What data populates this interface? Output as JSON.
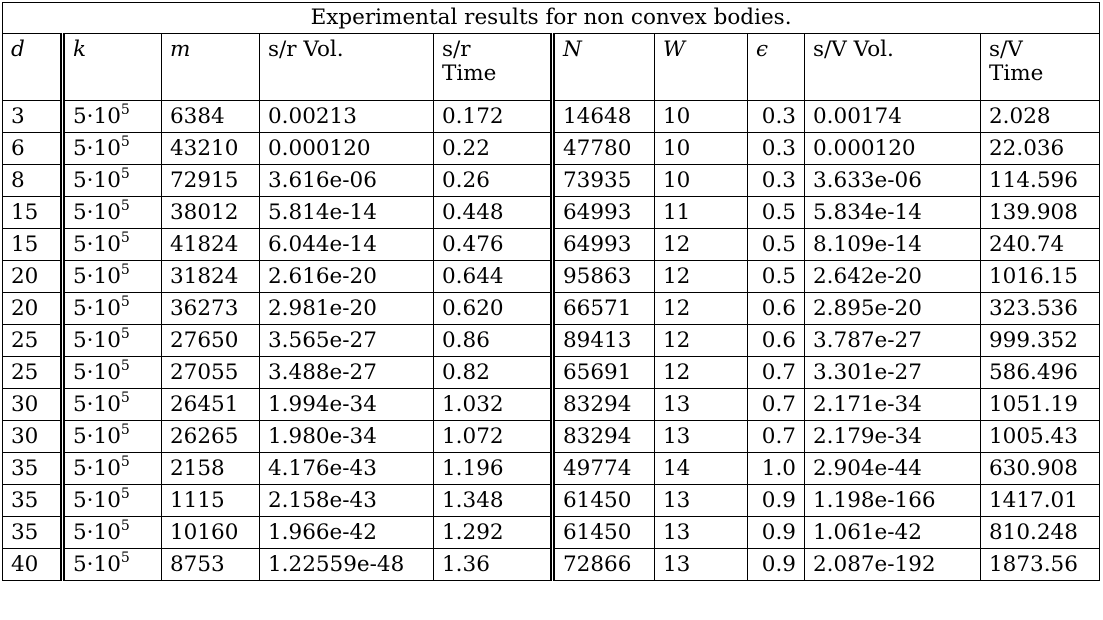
{
  "table": {
    "title": "Experimental results for non convex bodies.",
    "headers": {
      "d": "d",
      "k": "k",
      "m": "m",
      "sr_vol": "s/r Vol.",
      "sr_time_1": "s/r",
      "sr_time_2": "Time",
      "N": "N",
      "W": "W",
      "eps": "ϵ",
      "sv_vol": "s/V Vol.",
      "sv_time_1": "s/V",
      "sv_time_2": "Time"
    },
    "rows": [
      {
        "d": "3",
        "k_base": "5·10",
        "k_exp": "5",
        "m": "6384",
        "sr_vol": "0.00213",
        "sr_time": "0.172",
        "N": "14648",
        "W": "10",
        "eps": "0.3",
        "sv_vol": "0.00174",
        "sv_time": "2.028"
      },
      {
        "d": "6",
        "k_base": "5·10",
        "k_exp": "5",
        "m": "43210",
        "sr_vol": "0.000120",
        "sr_time": "0.22",
        "N": "47780",
        "W": "10",
        "eps": "0.3",
        "sv_vol": "0.000120",
        "sv_time": "22.036"
      },
      {
        "d": "8",
        "k_base": "5·10",
        "k_exp": "5",
        "m": "72915",
        "sr_vol": "3.616e-06",
        "sr_time": "0.26",
        "N": "73935",
        "W": "10",
        "eps": "0.3",
        "sv_vol": "3.633e-06",
        "sv_time": "114.596"
      },
      {
        "d": "15",
        "k_base": "5·10",
        "k_exp": "5",
        "m": "38012",
        "sr_vol": "5.814e-14",
        "sr_time": "0.448",
        "N": "64993",
        "W": "11",
        "eps": "0.5",
        "sv_vol": "5.834e-14",
        "sv_time": "139.908"
      },
      {
        "d": "15",
        "k_base": "5·10",
        "k_exp": "5",
        "m": "41824",
        "sr_vol": "6.044e-14",
        "sr_time": "0.476",
        "N": "64993",
        "W": "12",
        "eps": "0.5",
        "sv_vol": "8.109e-14",
        "sv_time": "240.74"
      },
      {
        "d": "20",
        "k_base": "5·10",
        "k_exp": "5",
        "m": "31824",
        "sr_vol": "2.616e-20",
        "sr_time": "0.644",
        "N": "95863",
        "W": "12",
        "eps": "0.5",
        "sv_vol": "2.642e-20",
        "sv_time": "1016.15"
      },
      {
        "d": "20",
        "k_base": "5·10",
        "k_exp": "5",
        "m": "36273",
        "sr_vol": "2.981e-20",
        "sr_time": "0.620",
        "N": "66571",
        "W": "12",
        "eps": "0.6",
        "sv_vol": "2.895e-20",
        "sv_time": "323.536"
      },
      {
        "d": "25",
        "k_base": "5·10",
        "k_exp": "5",
        "m": "27650",
        "sr_vol": "3.565e-27",
        "sr_time": "0.86",
        "N": "89413",
        "W": "12",
        "eps": "0.6",
        "sv_vol": "3.787e-27",
        "sv_time": "999.352"
      },
      {
        "d": "25",
        "k_base": "5·10",
        "k_exp": "5",
        "m": "27055",
        "sr_vol": "3.488e-27",
        "sr_time": "0.82",
        "N": "65691",
        "W": "12",
        "eps": "0.7",
        "sv_vol": "3.301e-27",
        "sv_time": "586.496"
      },
      {
        "d": "30",
        "k_base": "5·10",
        "k_exp": "5",
        "m": "26451",
        "sr_vol": "1.994e-34",
        "sr_time": "1.032",
        "N": "83294",
        "W": "13",
        "eps": "0.7",
        "sv_vol": "2.171e-34",
        "sv_time": "1051.19"
      },
      {
        "d": "30",
        "k_base": "5·10",
        "k_exp": "5",
        "m": "26265",
        "sr_vol": "1.980e-34",
        "sr_time": "1.072",
        "N": "83294",
        "W": "13",
        "eps": "0.7",
        "sv_vol": "2.179e-34",
        "sv_time": "1005.43"
      },
      {
        "d": "35",
        "k_base": "5·10",
        "k_exp": "5",
        "m": "2158",
        "sr_vol": "4.176e-43",
        "sr_time": "1.196",
        "N": "49774",
        "W": "14",
        "eps": "1.0",
        "sv_vol": "2.904e-44",
        "sv_time": "630.908"
      },
      {
        "d": "35",
        "k_base": "5·10",
        "k_exp": "5",
        "m": "1115",
        "sr_vol": "2.158e-43",
        "sr_time": "1.348",
        "N": "61450",
        "W": "13",
        "eps": "0.9",
        "sv_vol": "1.198e-166",
        "sv_time": "1417.01"
      },
      {
        "d": "35",
        "k_base": "5·10",
        "k_exp": "5",
        "m": "10160",
        "sr_vol": "1.966e-42",
        "sr_time": "1.292",
        "N": "61450",
        "W": "13",
        "eps": "0.9",
        "sv_vol": "1.061e-42",
        "sv_time": "810.248"
      },
      {
        "d": "40",
        "k_base": "5·10",
        "k_exp": "5",
        "m": "8753",
        "sr_vol": "1.22559e-48",
        "sr_time": "1.36",
        "N": "72866",
        "W": "13",
        "eps": "0.9",
        "sv_vol": "2.087e-192",
        "sv_time": "1873.56"
      }
    ]
  }
}
